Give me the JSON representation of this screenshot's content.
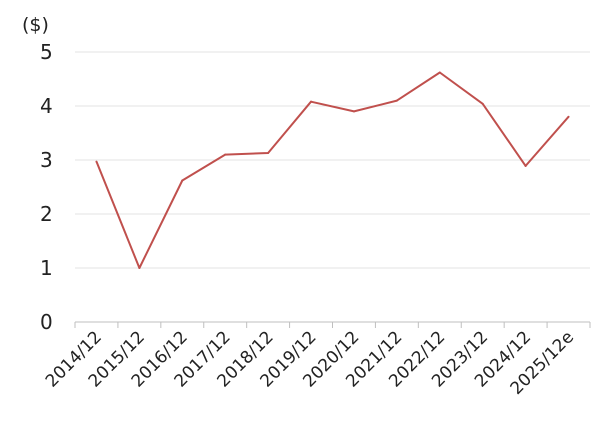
{
  "chart_data": {
    "type": "line",
    "unit_label": "($)",
    "categories": [
      "2014/12",
      "2015/12",
      "2016/12",
      "2017/12",
      "2018/12",
      "2019/12",
      "2020/12",
      "2021/12",
      "2022/12",
      "2023/12",
      "2024/12",
      "2025/12e"
    ],
    "series": [
      {
        "values": [
          2.97,
          1.0,
          2.62,
          3.1,
          3.13,
          4.08,
          3.9,
          4.1,
          4.62,
          4.04,
          2.89,
          3.8
        ],
        "color": "#c0504d"
      }
    ],
    "yticks": [
      "0",
      "1",
      "2",
      "3",
      "4",
      "5"
    ],
    "ylim": [
      0,
      5
    ],
    "grid": true,
    "legend": "none",
    "colors": {
      "line": "#c0504d",
      "grid": "#e3e3e3",
      "axis": "#bfbfbf",
      "text": "#222222"
    }
  }
}
